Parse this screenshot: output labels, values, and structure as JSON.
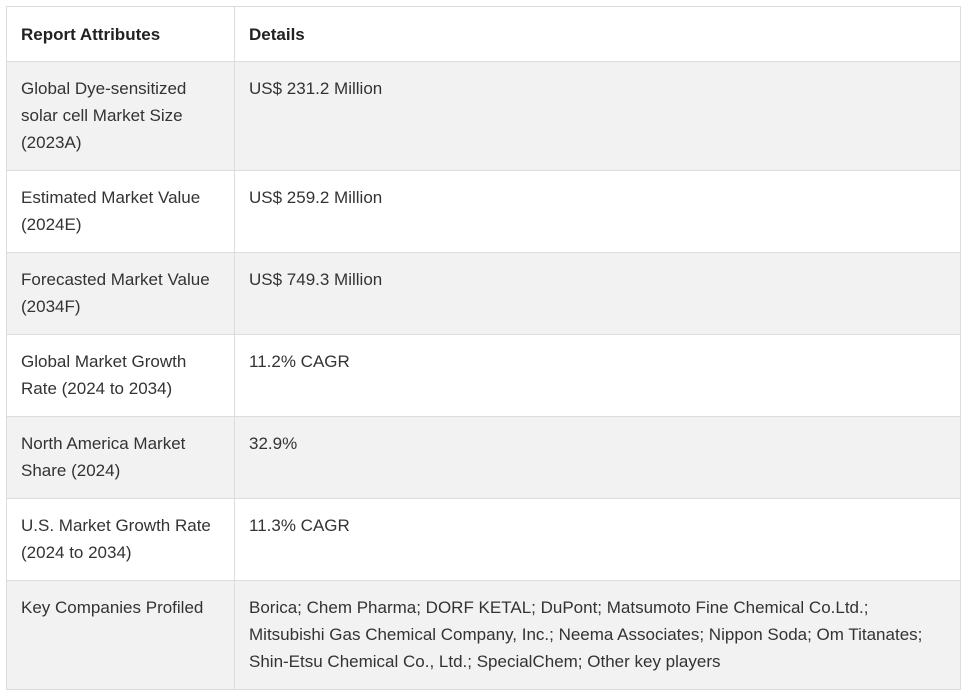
{
  "table": {
    "headers": [
      "Report Attributes",
      "Details"
    ],
    "rows": [
      {
        "attribute": "Global Dye-sensitized solar cell Market Size (2023A)",
        "detail": "US$ 231.2 Million"
      },
      {
        "attribute": "Estimated Market Value (2024E)",
        "detail": "US$ 259.2 Million"
      },
      {
        "attribute": "Forecasted Market Value (2034F)",
        "detail": "US$ 749.3 Million"
      },
      {
        "attribute": "Global Market Growth Rate (2024 to 2034)",
        "detail": "11.2% CAGR"
      },
      {
        "attribute": "North America Market Share (2024)",
        "detail": "32.9%"
      },
      {
        "attribute": "U.S. Market Growth Rate (2024 to 2034)",
        "detail": "11.3% CAGR"
      },
      {
        "attribute": "Key Companies Profiled",
        "detail": "Borica; Chem Pharma; DORF KETAL; DuPont; Matsumoto Fine Chemical Co.Ltd.; Mitsubishi Gas Chemical Company, Inc.; Neema Associates; Nippon Soda; Om Titanates; Shin-Etsu Chemical Co., Ltd.; SpecialChem; Other key players"
      }
    ]
  },
  "colors": {
    "stripe": "#f2f2f2",
    "border": "#dcdcdc",
    "text": "#333333"
  }
}
